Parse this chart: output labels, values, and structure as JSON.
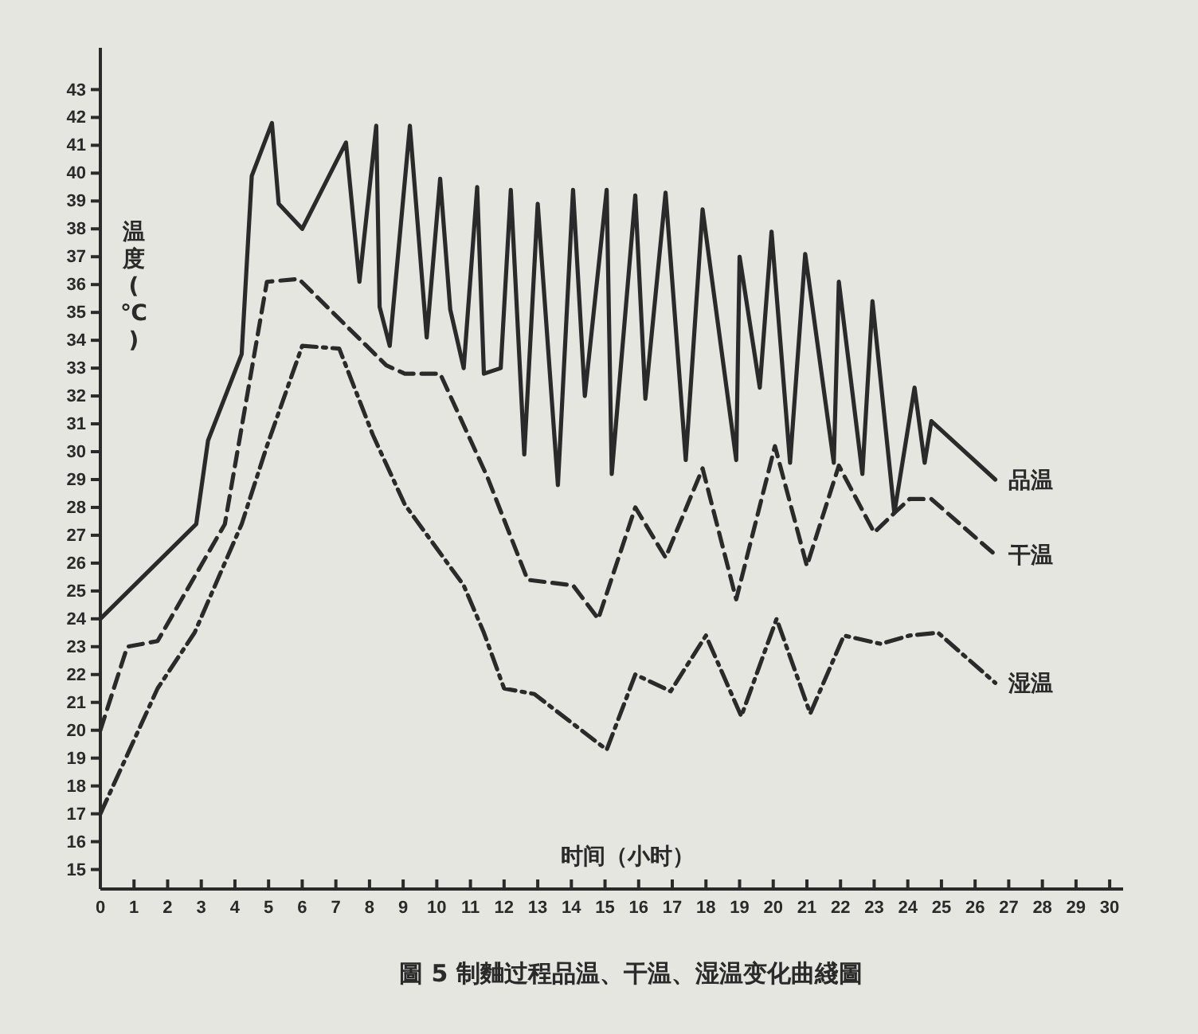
{
  "chart_data": {
    "type": "line",
    "title": "圖 5  制麯过程品温、干温、湿温变化曲綫圖",
    "xlabel": "时间（小时）",
    "ylabel": "温度(℃)",
    "xlim": [
      0,
      30.4
    ],
    "xticks": [
      0,
      1,
      2,
      3,
      4,
      5,
      6,
      7,
      8,
      9,
      10,
      11,
      12,
      13,
      14,
      15,
      16,
      17,
      18,
      19,
      20,
      21,
      22,
      23,
      24,
      25,
      26,
      27,
      28,
      29,
      30
    ],
    "ylim": [
      14.3,
      44.5
    ],
    "yticks": [
      15,
      16,
      17,
      18,
      19,
      20,
      21,
      22,
      23,
      24,
      25,
      26,
      27,
      28,
      29,
      30,
      31,
      32,
      33,
      34,
      35,
      36,
      37,
      38,
      39,
      40,
      41,
      42,
      43
    ],
    "grid": false,
    "legend": false,
    "marker": "none",
    "series": [
      {
        "name": "品温",
        "color": "#2a2a2a",
        "line_style": "solid",
        "x": [
          0,
          2.85,
          3.2,
          4.2,
          4.5,
          5.1,
          5.3,
          6.0,
          7.3,
          7.7,
          8.2,
          8.3,
          8.6,
          9.2,
          9.7,
          10.1,
          10.4,
          10.8,
          11.2,
          11.4,
          11.9,
          12.2,
          12.6,
          13.0,
          13.6,
          14.05,
          14.4,
          15.05,
          15.2,
          15.9,
          16.2,
          16.8,
          17.4,
          17.9,
          18.9,
          19.0,
          19.6,
          19.95,
          20.5,
          20.95,
          21.8,
          21.95,
          22.65,
          22.95,
          23.6,
          24.2,
          24.5,
          24.7,
          26.6
        ],
        "values": [
          24.0,
          27.4,
          30.4,
          33.5,
          39.9,
          41.8,
          38.9,
          38.0,
          41.1,
          36.1,
          41.7,
          35.2,
          33.8,
          41.7,
          34.1,
          39.8,
          35.1,
          33.0,
          39.5,
          32.8,
          33.0,
          39.4,
          29.9,
          38.9,
          28.8,
          39.4,
          32.0,
          39.4,
          29.2,
          39.2,
          31.9,
          39.3,
          29.7,
          38.7,
          29.7,
          37.0,
          32.3,
          37.9,
          29.6,
          37.1,
          29.6,
          36.1,
          29.2,
          35.4,
          27.8,
          32.3,
          29.6,
          31.1,
          29.0
        ]
      },
      {
        "name": "干温",
        "color": "#2a2a2a",
        "line_style": "dashed",
        "x": [
          0,
          0.8,
          1.7,
          3.7,
          4.95,
          5.9,
          8.5,
          9.05,
          10.1,
          11.5,
          12.7,
          14.05,
          14.8,
          15.9,
          16.8,
          17.9,
          18.9,
          20.05,
          21.0,
          21.95,
          23.0,
          23.6,
          24.05,
          24.7,
          26.6
        ],
        "values": [
          20.0,
          23.0,
          23.2,
          27.4,
          36.1,
          36.2,
          33.1,
          32.8,
          32.8,
          29.1,
          25.4,
          25.2,
          24.0,
          28.0,
          26.2,
          29.4,
          24.7,
          30.2,
          25.9,
          29.5,
          27.1,
          27.8,
          28.3,
          28.3,
          26.3
        ]
      },
      {
        "name": "湿温",
        "color": "#2a2a2a",
        "line_style": "dashdot",
        "x": [
          0,
          1.7,
          2.8,
          4.2,
          4.95,
          6.0,
          7.1,
          8.1,
          9.05,
          10.8,
          11.4,
          12.0,
          12.9,
          15.05,
          15.9,
          16.95,
          18.0,
          19.05,
          20.1,
          21.1,
          22.1,
          23.2,
          24.05,
          24.9,
          26.6
        ],
        "values": [
          17.0,
          21.5,
          23.5,
          27.4,
          30.2,
          33.8,
          33.7,
          30.6,
          28.1,
          25.2,
          23.5,
          21.5,
          21.3,
          19.3,
          22.0,
          21.4,
          23.4,
          20.5,
          24.0,
          20.6,
          23.4,
          23.1,
          23.4,
          23.5,
          21.7
        ]
      }
    ]
  }
}
